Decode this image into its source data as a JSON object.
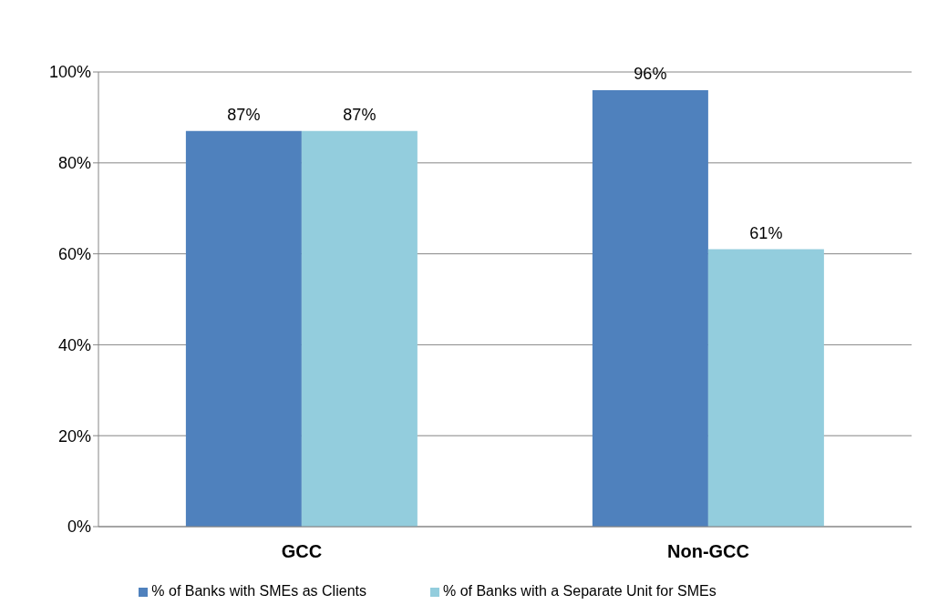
{
  "chart_data": {
    "type": "bar",
    "categories": [
      "GCC",
      "Non-GCC"
    ],
    "series": [
      {
        "name": "% of Banks with SMEs as Clients",
        "color": "#4f81bd",
        "values": [
          87,
          96
        ],
        "value_labels": [
          "87%",
          "96%"
        ]
      },
      {
        "name": "% of Banks with a Separate Unit for SMEs",
        "color": "#93cddd",
        "values": [
          87,
          61
        ],
        "value_labels": [
          "87%",
          "61%"
        ]
      }
    ],
    "ylim": [
      0,
      100
    ],
    "yticks": [
      {
        "value": 0,
        "label": "0%"
      },
      {
        "value": 20,
        "label": "20%"
      },
      {
        "value": 40,
        "label": "40%"
      },
      {
        "value": 60,
        "label": "60%"
      },
      {
        "value": 80,
        "label": "80%"
      },
      {
        "value": 100,
        "label": "100%"
      }
    ],
    "grid": "y",
    "legend": "bottom"
  }
}
